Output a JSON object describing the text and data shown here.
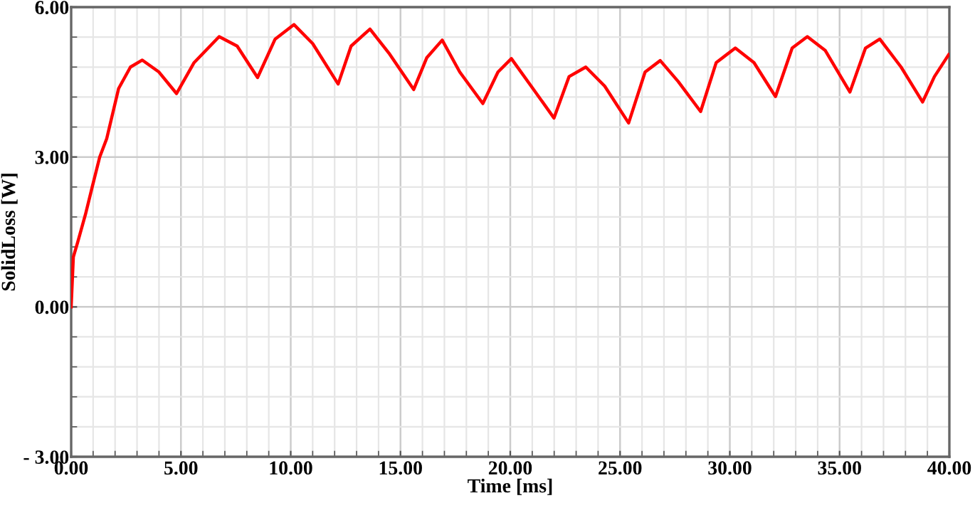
{
  "chart_data": {
    "type": "line",
    "xlabel": "Time [ms]",
    "ylabel": "SolidLoss [W]",
    "xlim": [
      0,
      40
    ],
    "ylim": [
      -3,
      6
    ],
    "xticks": [
      {
        "value": 0,
        "label": "0.00"
      },
      {
        "value": 5,
        "label": "5.00"
      },
      {
        "value": 10,
        "label": "10.00"
      },
      {
        "value": 15,
        "label": "15.00"
      },
      {
        "value": 20,
        "label": "20.00"
      },
      {
        "value": 25,
        "label": "25.00"
      },
      {
        "value": 30,
        "label": "30.00"
      },
      {
        "value": 35,
        "label": "35.00"
      },
      {
        "value": 40,
        "label": "40.00"
      }
    ],
    "yticks": [
      {
        "value": -3,
        "label": "- 3.00"
      },
      {
        "value": 0,
        "label": "0.00"
      },
      {
        "value": 3,
        "label": "3.00"
      },
      {
        "value": 6,
        "label": "6.00"
      }
    ],
    "grid": true,
    "marker": "none",
    "line_style": "solid",
    "legend": false,
    "series": [
      {
        "color": "#ff0000",
        "x": [
          0,
          0.1,
          0.3,
          0.65,
          0.97,
          1.3,
          1.62,
          2.16,
          2.7,
          3.24,
          4.0,
          4.8,
          5.6,
          6.74,
          7.56,
          8.49,
          9.29,
          10.15,
          11.0,
          12.16,
          12.75,
          13.61,
          14.47,
          15.6,
          16.2,
          16.9,
          17.7,
          18.75,
          19.44,
          20.05,
          20.95,
          21.99,
          22.68,
          23.44,
          24.3,
          25.39,
          26.14,
          26.83,
          27.65,
          28.67,
          29.38,
          30.25,
          31.1,
          32.08,
          32.84,
          33.53,
          34.35,
          35.47,
          36.18,
          36.83,
          37.8,
          38.78,
          39.32,
          39.97
        ],
        "values": [
          0,
          1.0,
          1.3,
          1.85,
          2.42,
          3.0,
          3.37,
          4.37,
          4.8,
          4.94,
          4.7,
          4.27,
          4.89,
          5.41,
          5.22,
          4.59,
          5.36,
          5.65,
          5.27,
          4.46,
          5.22,
          5.56,
          5.08,
          4.35,
          4.99,
          5.34,
          4.7,
          4.07,
          4.7,
          4.97,
          4.42,
          3.78,
          4.61,
          4.8,
          4.42,
          3.68,
          4.7,
          4.93,
          4.51,
          3.91,
          4.89,
          5.18,
          4.89,
          4.21,
          5.18,
          5.41,
          5.13,
          4.3,
          5.18,
          5.36,
          4.8,
          4.1,
          4.61,
          5.05
        ]
      }
    ]
  }
}
